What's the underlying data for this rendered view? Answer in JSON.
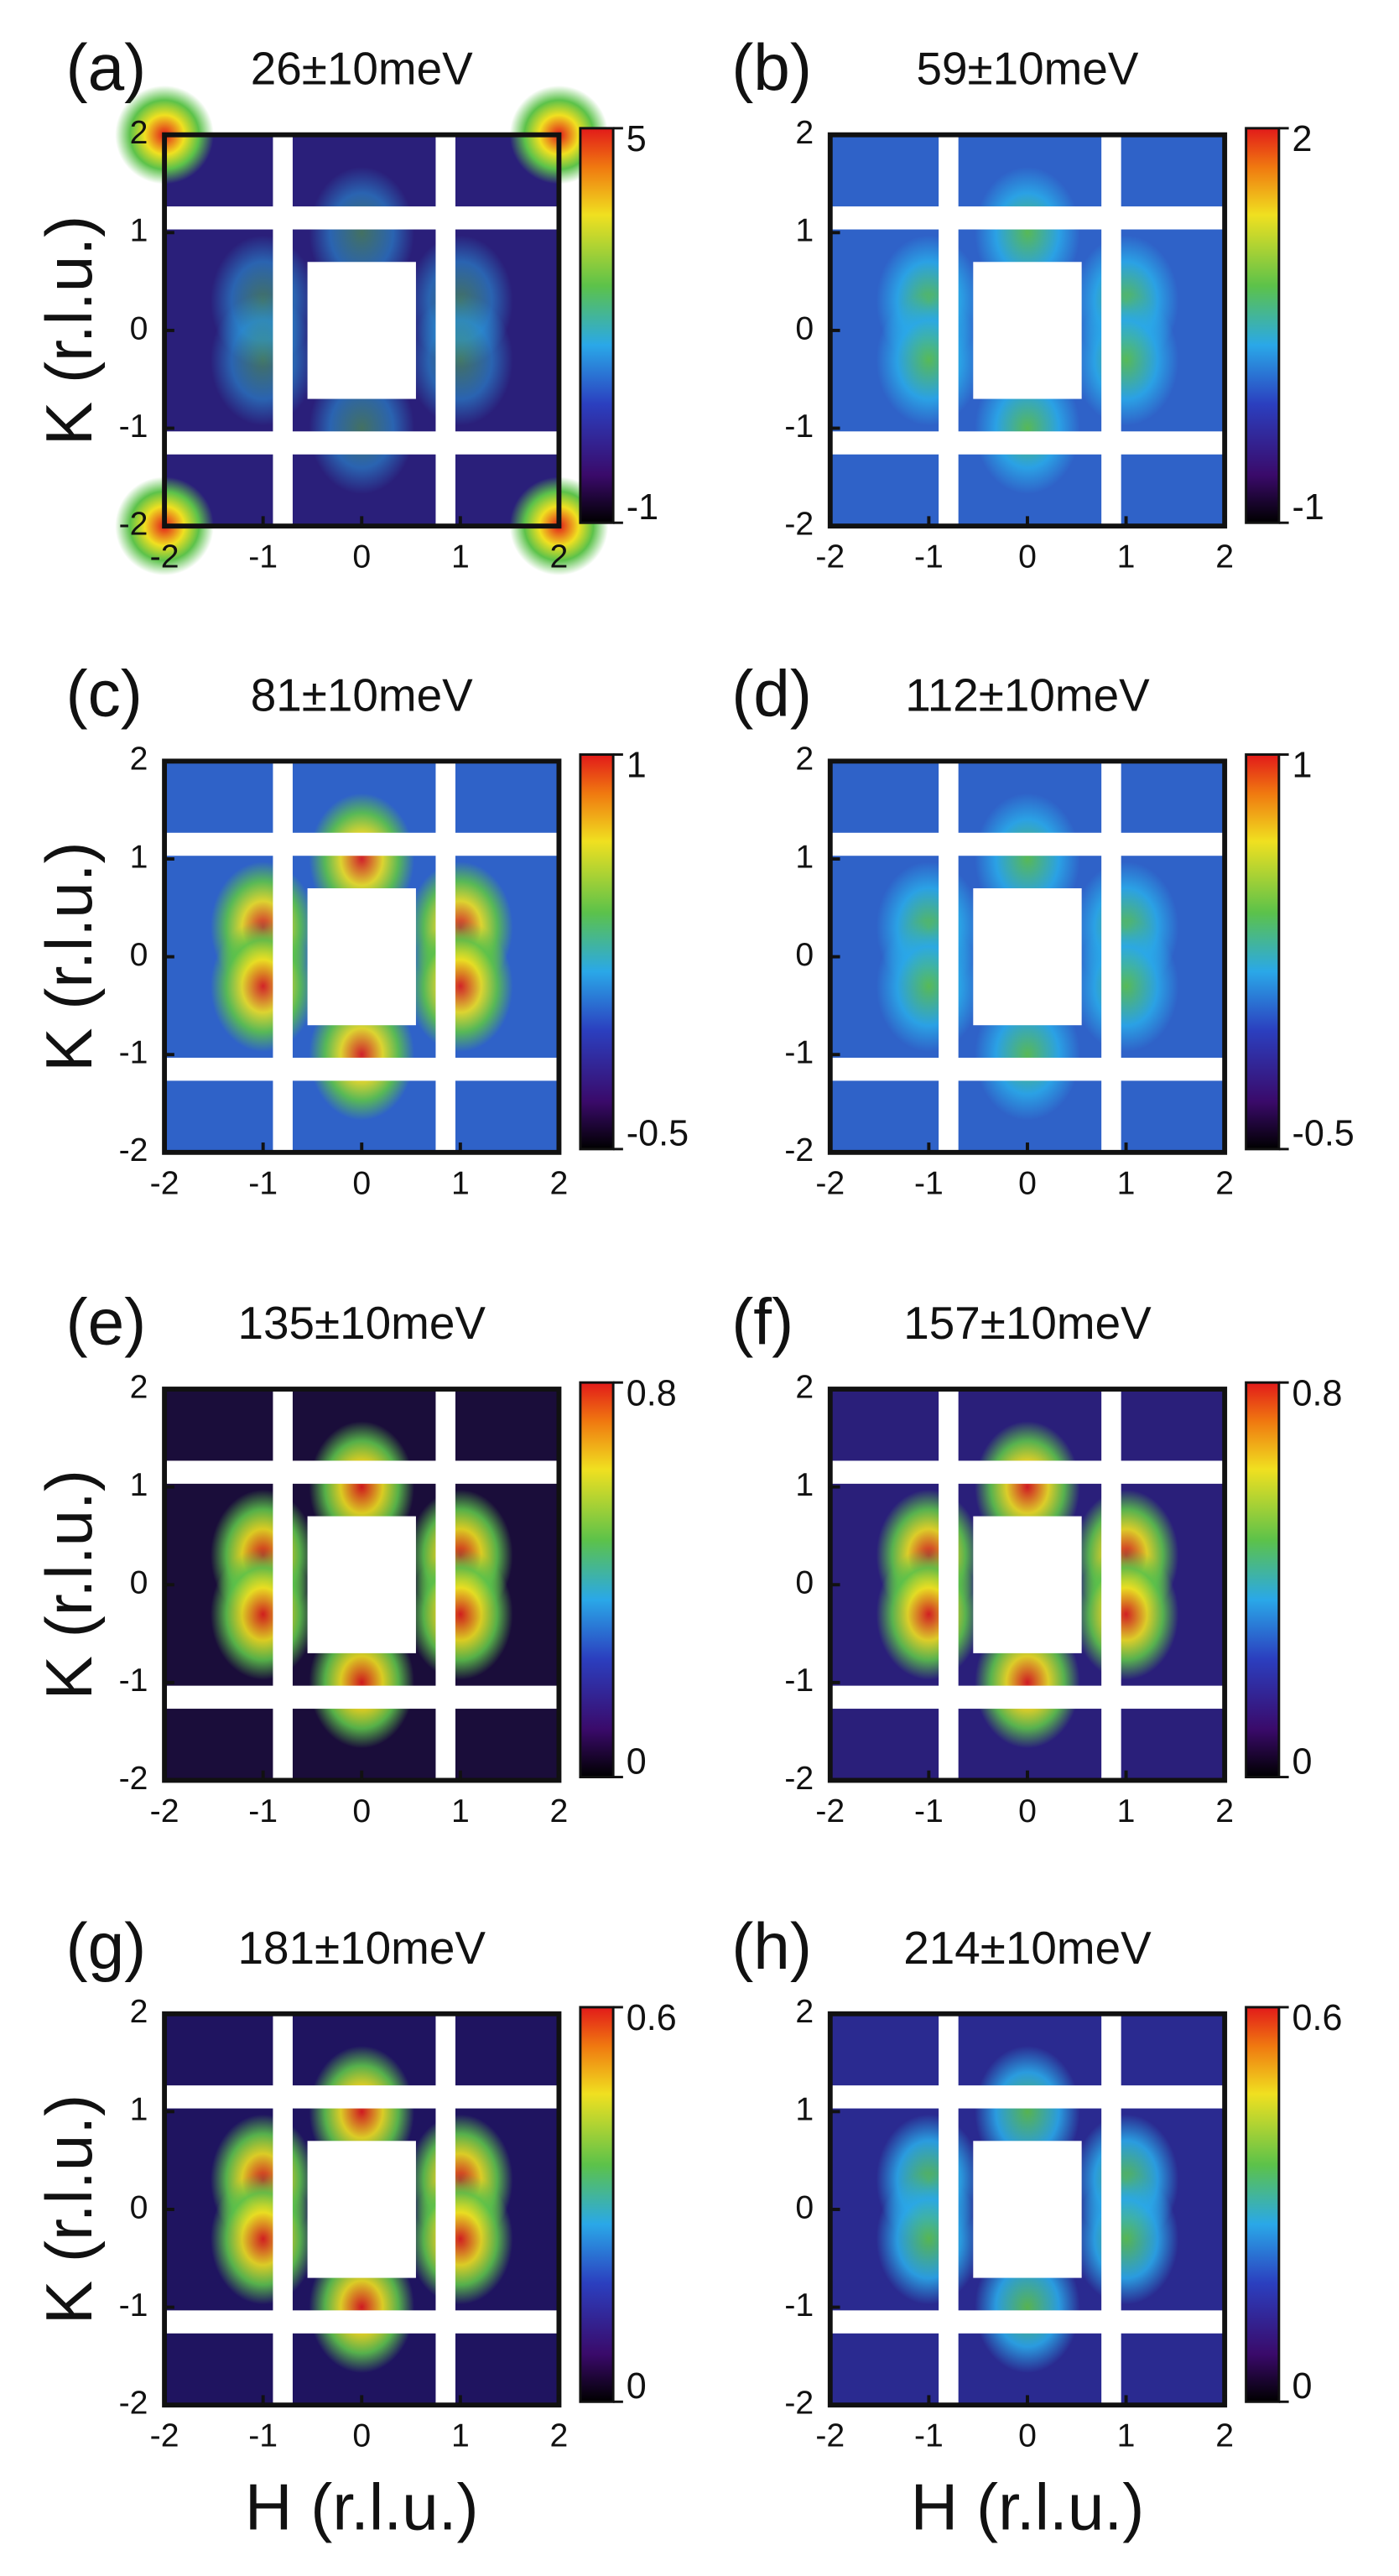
{
  "chart_data": [
    {
      "type": "heatmap",
      "panel": "(a)",
      "title": "26±10meV",
      "ylabel": "K (r.l.u.)",
      "xlim": [
        -2,
        2
      ],
      "ylim": [
        -2,
        2
      ],
      "xticks": [
        -2,
        -1,
        0,
        1,
        2
      ],
      "yticks": [
        -2,
        -1,
        0,
        1,
        2
      ],
      "clim": [
        -1,
        5
      ],
      "cticks": [
        -1,
        5
      ],
      "colormap": "jet"
    },
    {
      "type": "heatmap",
      "panel": "(b)",
      "title": "59±10meV",
      "xlim": [
        -2,
        2
      ],
      "ylim": [
        -2,
        2
      ],
      "xticks": [
        -2,
        -1,
        0,
        1,
        2
      ],
      "yticks": [
        -2,
        -1,
        0,
        1,
        2
      ],
      "clim": [
        -1,
        2
      ],
      "cticks": [
        -1,
        2
      ],
      "colormap": "jet"
    },
    {
      "type": "heatmap",
      "panel": "(c)",
      "title": "81±10meV",
      "ylabel": "K (r.l.u.)",
      "xlim": [
        -2,
        2
      ],
      "ylim": [
        -2,
        2
      ],
      "xticks": [
        -2,
        -1,
        0,
        1,
        2
      ],
      "yticks": [
        -2,
        -1,
        0,
        1,
        2
      ],
      "clim": [
        -0.5,
        1
      ],
      "cticks": [
        -0.5,
        1
      ],
      "colormap": "jet"
    },
    {
      "type": "heatmap",
      "panel": "(d)",
      "title": "112±10meV",
      "xlim": [
        -2,
        2
      ],
      "ylim": [
        -2,
        2
      ],
      "xticks": [
        -2,
        -1,
        0,
        1,
        2
      ],
      "yticks": [
        -2,
        -1,
        0,
        1,
        2
      ],
      "clim": [
        -0.5,
        1
      ],
      "cticks": [
        -0.5,
        1
      ],
      "colormap": "jet"
    },
    {
      "type": "heatmap",
      "panel": "(e)",
      "title": "135±10meV",
      "ylabel": "K (r.l.u.)",
      "xlim": [
        -2,
        2
      ],
      "ylim": [
        -2,
        2
      ],
      "xticks": [
        -2,
        -1,
        0,
        1,
        2
      ],
      "yticks": [
        -2,
        -1,
        0,
        1,
        2
      ],
      "clim": [
        0,
        0.8
      ],
      "cticks": [
        0,
        0.8
      ],
      "colormap": "jet"
    },
    {
      "type": "heatmap",
      "panel": "(f)",
      "title": "157±10meV",
      "xlim": [
        -2,
        2
      ],
      "ylim": [
        -2,
        2
      ],
      "xticks": [
        -2,
        -1,
        0,
        1,
        2
      ],
      "yticks": [
        -2,
        -1,
        0,
        1,
        2
      ],
      "clim": [
        0,
        0.8
      ],
      "cticks": [
        0,
        0.8
      ],
      "colormap": "jet"
    },
    {
      "type": "heatmap",
      "panel": "(g)",
      "title": "181±10meV",
      "xlabel": "H (r.l.u.)",
      "ylabel": "K (r.l.u.)",
      "xlim": [
        -2,
        2
      ],
      "ylim": [
        -2,
        2
      ],
      "xticks": [
        -2,
        -1,
        0,
        1,
        2
      ],
      "yticks": [
        -2,
        -1,
        0,
        1,
        2
      ],
      "clim": [
        0,
        0.6
      ],
      "cticks": [
        0,
        0.6
      ],
      "colormap": "jet"
    },
    {
      "type": "heatmap",
      "panel": "(h)",
      "title": "214±10meV",
      "xlabel": "H (r.l.u.)",
      "xlim": [
        -2,
        2
      ],
      "ylim": [
        -2,
        2
      ],
      "xticks": [
        -2,
        -1,
        0,
        1,
        2
      ],
      "yticks": [
        -2,
        -1,
        0,
        1,
        2
      ],
      "clim": [
        0,
        0.6
      ],
      "cticks": [
        0,
        0.6
      ],
      "colormap": "jet"
    }
  ]
}
